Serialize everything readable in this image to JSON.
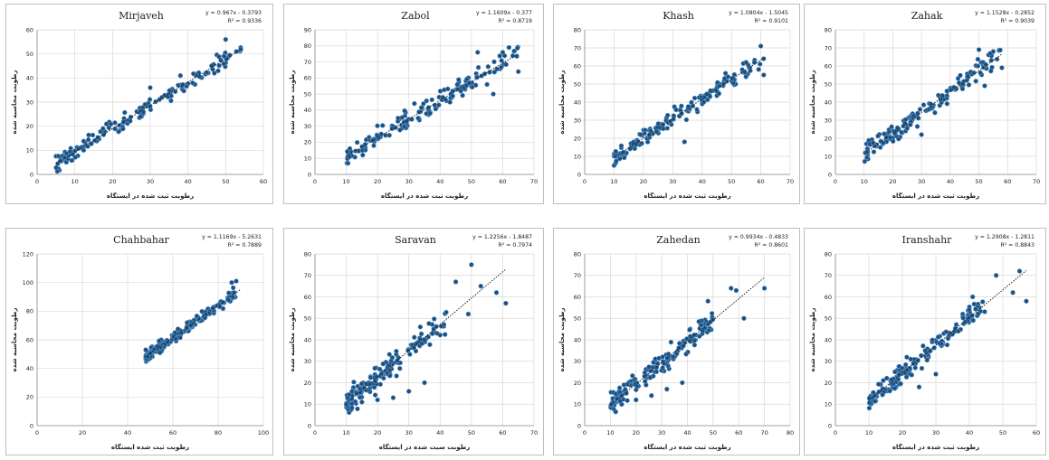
{
  "chart_data": [
    {
      "type": "scatter",
      "title": "Mirjaveh",
      "equation": "y = 0.967x - 0.3793",
      "r2": "R² = 0.9336",
      "slope": 0.967,
      "intercept": -0.3793,
      "xlim": [
        0,
        60
      ],
      "ylim": [
        0,
        60
      ],
      "xticks": [
        "0",
        "10",
        "20",
        "30",
        "40",
        "50",
        "60"
      ],
      "yticks": [
        "0",
        "10",
        "20",
        "30",
        "40",
        "50",
        "60"
      ],
      "xlabel": "رطوبت ثبت شده در ایستگاه",
      "ylabel": "رطوبت محاسبه شده",
      "x_range": [
        5,
        54
      ],
      "noise": 3.5,
      "n": 150,
      "outliers": [
        [
          50,
          56
        ],
        [
          54,
          52
        ],
        [
          47,
          42
        ],
        [
          48,
          43
        ],
        [
          38,
          41
        ],
        [
          30,
          36
        ]
      ],
      "trend": [
        [
          5,
          54
        ]
      ]
    },
    {
      "type": "scatter",
      "title": "Zabol",
      "equation": "y = 1.1609x - 0.377",
      "r2": "R² = 0.8719",
      "slope": 1.1609,
      "intercept": -0.377,
      "xlim": [
        0,
        70
      ],
      "ylim": [
        0,
        90
      ],
      "xticks": [
        "0",
        "10",
        "20",
        "30",
        "40",
        "50",
        "60",
        "70"
      ],
      "yticks": [
        "0",
        "10",
        "20",
        "30",
        "40",
        "50",
        "60",
        "70",
        "80",
        "90"
      ],
      "xlabel": "رطوبت ثبت شده در ایستگاه",
      "ylabel": "رطوبت محاسبه شده",
      "x_range": [
        10,
        65
      ],
      "noise": 6,
      "n": 150,
      "outliers": [
        [
          62,
          79
        ],
        [
          60,
          76
        ],
        [
          65,
          64
        ],
        [
          57,
          50
        ],
        [
          52,
          76
        ],
        [
          55,
          56
        ]
      ],
      "trend": [
        [
          10,
          65
        ]
      ]
    },
    {
      "type": "scatter",
      "title": "Khash",
      "equation": "y = 1.0804x - 1.5045",
      "r2": "R² = 0.9101",
      "slope": 1.0804,
      "intercept": -1.5045,
      "xlim": [
        0,
        70
      ],
      "ylim": [
        0,
        80
      ],
      "xticks": [
        "0",
        "10",
        "20",
        "30",
        "40",
        "50",
        "60",
        "70"
      ],
      "yticks": [
        "0",
        "10",
        "20",
        "30",
        "40",
        "50",
        "60",
        "70",
        "80"
      ],
      "xlabel": "رطوبت ثبت شده در ایستگاه",
      "ylabel": "رطوبت محاسبه شده",
      "x_range": [
        10,
        61
      ],
      "noise": 4.5,
      "n": 150,
      "outliers": [
        [
          60,
          71
        ],
        [
          61,
          64
        ],
        [
          61,
          55
        ],
        [
          55,
          62
        ],
        [
          34,
          18
        ]
      ],
      "trend": [
        [
          10,
          61
        ]
      ]
    },
    {
      "type": "scatter",
      "title": "Zahak",
      "equation": "y = 1.1528x - 0.2852",
      "r2": "R² = 0.9039",
      "slope": 1.1528,
      "intercept": -0.2852,
      "xlim": [
        0,
        70
      ],
      "ylim": [
        0,
        80
      ],
      "xticks": [
        "0",
        "10",
        "20",
        "30",
        "40",
        "50",
        "60",
        "70"
      ],
      "yticks": [
        "0",
        "10",
        "20",
        "30",
        "40",
        "50",
        "60",
        "70",
        "80"
      ],
      "xlabel": "رطوبت ثبت شده در ایستگاه",
      "ylabel": "رطوبت محاسبه شده",
      "x_range": [
        10,
        58
      ],
      "noise": 5,
      "n": 150,
      "outliers": [
        [
          50,
          69
        ],
        [
          54,
          67
        ],
        [
          55,
          68
        ],
        [
          58,
          59
        ],
        [
          52,
          49
        ],
        [
          30,
          22
        ]
      ],
      "trend": [
        [
          10,
          58
        ]
      ]
    },
    {
      "type": "scatter",
      "title": "Chahbahar",
      "equation": "y = 1.1169x - 5.2631",
      "r2": "R² = 0.7889",
      "slope": 1.1169,
      "intercept": -5.2631,
      "xlim": [
        0,
        100
      ],
      "ylim": [
        0,
        120
      ],
      "xticks": [
        "0",
        "20",
        "40",
        "60",
        "80",
        "100"
      ],
      "yticks": [
        "0",
        "20",
        "40",
        "60",
        "80",
        "100",
        "120"
      ],
      "xlabel": "رطوبت ثبت شده ایستگاه",
      "ylabel": "رطوبت محاسبه شده",
      "x_range": [
        48,
        88
      ],
      "noise": 4,
      "n": 170,
      "outliers": [
        [
          88,
          101
        ],
        [
          86,
          100
        ],
        [
          49,
          48
        ],
        [
          48,
          53
        ]
      ],
      "trend": [
        [
          48,
          90
        ]
      ]
    },
    {
      "type": "scatter",
      "title": "Saravan",
      "equation": "y = 1.2256x - 1.8487",
      "r2": "R² = 0.7974",
      "slope": 1.2256,
      "intercept": -1.8487,
      "xlim": [
        0,
        70
      ],
      "ylim": [
        0,
        80
      ],
      "xticks": [
        "0",
        "10",
        "20",
        "30",
        "40",
        "50",
        "60",
        "70"
      ],
      "yticks": [
        "0",
        "10",
        "20",
        "30",
        "40",
        "50",
        "60",
        "70",
        "80"
      ],
      "xlabel": "رطوبت سبت شده در ایستگاه",
      "ylabel": "رطوبت محاسبه شده",
      "x_range": [
        10,
        42
      ],
      "noise": 6,
      "n": 160,
      "outliers": [
        [
          50,
          75
        ],
        [
          45,
          67
        ],
        [
          53,
          65
        ],
        [
          58,
          62
        ],
        [
          61,
          57
        ],
        [
          49,
          52
        ],
        [
          15,
          11
        ],
        [
          20,
          12
        ],
        [
          25,
          13
        ],
        [
          30,
          16
        ],
        [
          35,
          20
        ]
      ],
      "trend": [
        [
          10,
          61
        ]
      ]
    },
    {
      "type": "scatter",
      "title": "Zahedan",
      "equation": "y = 0.9934x - 0.4833",
      "r2": "R² = 0.8601",
      "slope": 0.9934,
      "intercept": -0.4833,
      "xlim": [
        0,
        80
      ],
      "ylim": [
        0,
        80
      ],
      "xticks": [
        "0",
        "10",
        "20",
        "30",
        "40",
        "50",
        "60",
        "70",
        "80"
      ],
      "yticks": [
        "0",
        "10",
        "20",
        "30",
        "40",
        "50",
        "60",
        "70",
        "80"
      ],
      "xlabel": "رطوبت ثبت شده در ایستگاه",
      "ylabel": "رطوبت محاسبه شده",
      "x_range": [
        10,
        50
      ],
      "noise": 5,
      "n": 160,
      "outliers": [
        [
          57,
          64
        ],
        [
          59,
          63
        ],
        [
          62,
          50
        ],
        [
          70,
          64
        ],
        [
          48,
          58
        ],
        [
          20,
          12
        ],
        [
          26,
          14
        ],
        [
          32,
          17
        ],
        [
          38,
          20
        ]
      ],
      "trend": [
        [
          10,
          70
        ]
      ]
    },
    {
      "type": "scatter",
      "title": "Iranshahr",
      "equation": "y = 1.2908x - 1.2811",
      "r2": "R² = 0.8843",
      "slope": 1.2908,
      "intercept": -1.2811,
      "xlim": [
        0,
        60
      ],
      "ylim": [
        0,
        80
      ],
      "xticks": [
        "0",
        "10",
        "20",
        "30",
        "40",
        "50",
        "60"
      ],
      "yticks": [
        "0",
        "10",
        "20",
        "30",
        "40",
        "50",
        "60",
        "70",
        "80"
      ],
      "xlabel": "رطوبت ثبت شده در ایستگاه",
      "ylabel": "رطوبت محاسبه شده",
      "x_range": [
        10,
        45
      ],
      "noise": 5,
      "n": 150,
      "outliers": [
        [
          48,
          70
        ],
        [
          55,
          72
        ],
        [
          57,
          58
        ],
        [
          53,
          62
        ],
        [
          41,
          60
        ],
        [
          40,
          54
        ],
        [
          25,
          18
        ],
        [
          30,
          24
        ]
      ],
      "trend": [
        [
          10,
          57
        ]
      ]
    }
  ],
  "colors": {
    "point": "#1f4e79",
    "point_light": "#5b9bd5",
    "grid": "#d9d9d9",
    "trend": "#222222",
    "axis": "#8c8c8c"
  }
}
